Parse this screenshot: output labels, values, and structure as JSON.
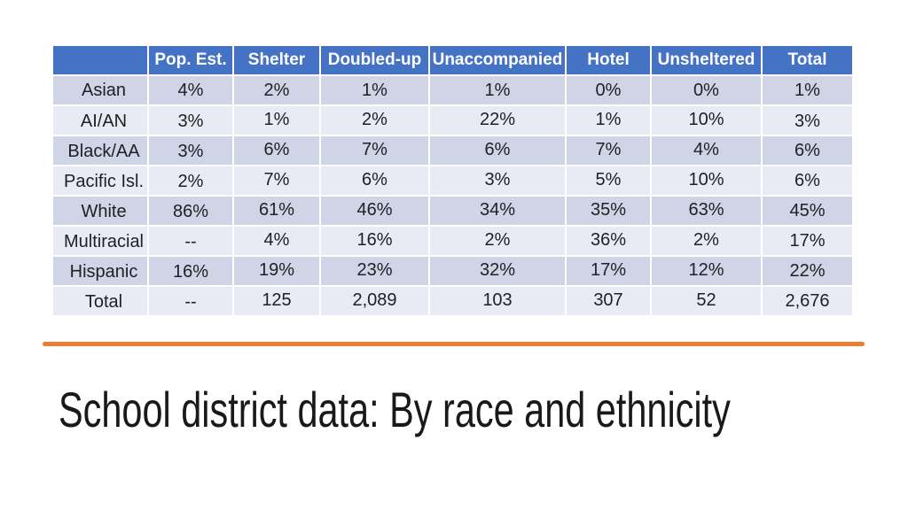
{
  "slide": {
    "title": "School district data: By race and ethnicity"
  },
  "colors": {
    "header_bg": "#4472C4",
    "band_dark": "#CFD4E6",
    "band_light": "#E9EBF4",
    "divider": "#ED7D31",
    "title_color": "#191919",
    "header_text": "#FFFFFF",
    "body_text": "#202124"
  },
  "table": {
    "columns": [
      "",
      "Pop. Est.",
      "Shelter",
      "Doubled-up",
      "Unaccompanied",
      "Hotel",
      "Unsheltered",
      "Total"
    ],
    "rows": [
      {
        "label": "Asian",
        "values": [
          "4%",
          "2%",
          "1%",
          "1%",
          "0%",
          "0%",
          "1%"
        ]
      },
      {
        "label": "AI/AN",
        "values": [
          "3%",
          "1%",
          "2%",
          "22%",
          "1%",
          "10%",
          "3%"
        ]
      },
      {
        "label": "Black/AA",
        "values": [
          "3%",
          "6%",
          "7%",
          "6%",
          "7%",
          "4%",
          "6%"
        ]
      },
      {
        "label": "Pacific Isl.",
        "values": [
          "2%",
          "7%",
          "6%",
          "3%",
          "5%",
          "10%",
          "6%"
        ]
      },
      {
        "label": "White",
        "values": [
          "86%",
          "61%",
          "46%",
          "34%",
          "35%",
          "63%",
          "45%"
        ]
      },
      {
        "label": "Multiracial",
        "values": [
          "--",
          "4%",
          "16%",
          "2%",
          "36%",
          "2%",
          "17%"
        ]
      },
      {
        "label": "Hispanic",
        "values": [
          "16%",
          "19%",
          "23%",
          "32%",
          "17%",
          "12%",
          "22%"
        ]
      },
      {
        "label": "Total",
        "values": [
          "--",
          "125",
          "2,089",
          "103",
          "307",
          "52",
          "2,676"
        ]
      }
    ]
  }
}
